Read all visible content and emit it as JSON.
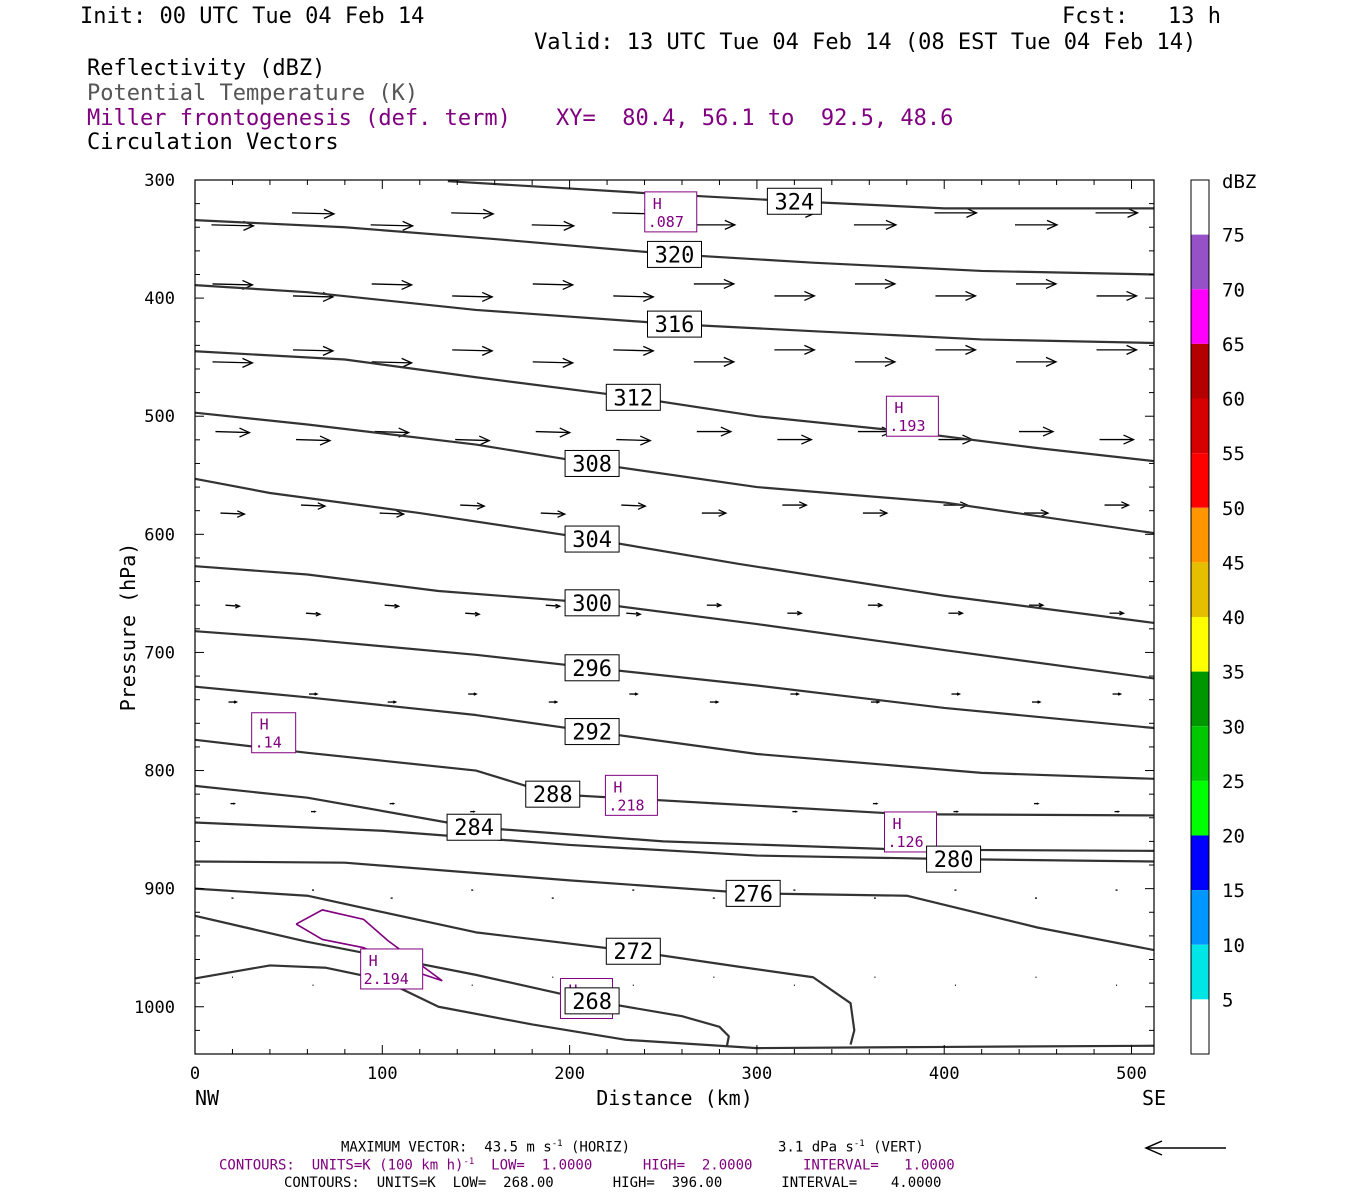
{
  "header": {
    "init": "Init: 00 UTC Tue 04 Feb 14",
    "fcst": "Fcst:   13 h",
    "valid": "Valid: 13 UTC Tue 04 Feb 14 (08 EST Tue 04 Feb 14)",
    "fields": [
      "Reflectivity (dBZ)",
      "Potential Temperature (K)",
      "Miller frontogenesis (def. term)",
      "Circulation Vectors"
    ],
    "xy": "XY=  80.4, 56.1 to  92.5, 48.6"
  },
  "colors": {
    "theta": "#333333",
    "frontogenesis": "#800080",
    "vectors": "#000000"
  },
  "colorbar": {
    "title": "dBZ",
    "labels": [
      "5",
      "10",
      "15",
      "20",
      "25",
      "30",
      "35",
      "40",
      "45",
      "50",
      "55",
      "60",
      "65",
      "70",
      "75"
    ],
    "colors": [
      "#ffffff",
      "#00e6e6",
      "#0096ff",
      "#0000ff",
      "#00ff00",
      "#00c800",
      "#009600",
      "#ffff00",
      "#e6be00",
      "#ff9600",
      "#ff0000",
      "#d70000",
      "#b40000",
      "#ff00ff",
      "#9650c8",
      "#ffffff"
    ]
  },
  "footer": {
    "max_vector": "MAXIMUM VECTOR:  43.5 m s",
    "max_vector_sup": "-1",
    "max_vector_horiz": " (HORIZ)",
    "max_vector_vert": "3.1 dPa s",
    "max_vector_vert_sup": "-1",
    "max_vector_vert_tail": " (VERT)",
    "contours1_a": "CONTOURS:  UNITS=K (100 km h)",
    "contours1_sup": "-1",
    "contours1_b": "  LOW=  1.0000      HIGH=  2.0000      INTERVAL=   1.0000",
    "contours2": "CONTOURS:  UNITS=K  LOW=  268.00       HIGH=  396.00       INTERVAL=    4.0000"
  },
  "chart_data": {
    "type": "line",
    "title": "",
    "xlabel": "Distance (km)",
    "ylabel": "Pressure (hPa)",
    "xlim": [
      0,
      512
    ],
    "ylim": [
      300,
      1040
    ],
    "y_log_scale": false,
    "x_ticks": [
      "0",
      "100",
      "200",
      "300",
      "400",
      "500"
    ],
    "y_ticks": [
      "300",
      "400",
      "500",
      "600",
      "700",
      "800",
      "900",
      "1000"
    ],
    "x_end_labels": {
      "left": "NW",
      "right": "SE"
    },
    "grid": false,
    "isentropes_K": [
      {
        "name": "324",
        "label_x": 320,
        "x": [
          135,
          250,
          320,
          400,
          512
        ],
        "y": [
          301,
          312,
          318,
          324,
          324
        ]
      },
      {
        "name": "320",
        "label_x": 256,
        "x": [
          0,
          80,
          160,
          256,
          330,
          420,
          512
        ],
        "y": [
          334,
          340,
          350,
          363,
          370,
          377,
          380
        ]
      },
      {
        "name": "316",
        "label_x": 256,
        "x": [
          0,
          60,
          150,
          256,
          330,
          420,
          512
        ],
        "y": [
          389,
          395,
          410,
          422,
          428,
          435,
          438
        ]
      },
      {
        "name": "312",
        "label_x": 234,
        "x": [
          0,
          80,
          150,
          234,
          300,
          380,
          450,
          512
        ],
        "y": [
          445,
          452,
          467,
          484,
          500,
          513,
          527,
          538
        ]
      },
      {
        "name": "308",
        "label_x": 212,
        "x": [
          0,
          60,
          150,
          212,
          300,
          400,
          512
        ],
        "y": [
          497,
          507,
          524,
          540,
          560,
          573,
          599
        ]
      },
      {
        "name": "304",
        "label_x": 212,
        "x": [
          0,
          40,
          120,
          212,
          290,
          400,
          512
        ],
        "y": [
          553,
          565,
          582,
          604,
          625,
          652,
          675
        ]
      },
      {
        "name": "300",
        "label_x": 212,
        "x": [
          0,
          60,
          130,
          212,
          300,
          400,
          512
        ],
        "y": [
          627,
          634,
          648,
          658,
          676,
          698,
          722
        ]
      },
      {
        "name": "296",
        "label_x": 212,
        "x": [
          0,
          60,
          150,
          212,
          300,
          400,
          512
        ],
        "y": [
          682,
          689,
          702,
          713,
          728,
          747,
          764
        ]
      },
      {
        "name": "292",
        "label_x": 212,
        "x": [
          0,
          60,
          150,
          212,
          300,
          420,
          512
        ],
        "y": [
          729,
          738,
          753,
          767,
          786,
          802,
          807
        ]
      },
      {
        "name": "288",
        "label_x": 191,
        "x": [
          0,
          60,
          150,
          191,
          280,
          380,
          512
        ],
        "y": [
          774,
          785,
          800,
          820,
          828,
          837,
          838
        ]
      },
      {
        "name": "284",
        "label_x": 149,
        "x": [
          0,
          60,
          149,
          250,
          380,
          512
        ],
        "y": [
          813,
          823,
          848,
          860,
          867,
          868
        ]
      },
      {
        "name": "280",
        "label_x": 405,
        "x": [
          0,
          100,
          200,
          300,
          405,
          512
        ],
        "y": [
          844,
          851,
          863,
          872,
          875,
          877
        ]
      },
      {
        "name": "276",
        "label_x": 298,
        "x": [
          0,
          80,
          200,
          298,
          380,
          450,
          512
        ],
        "y": [
          877,
          878,
          893,
          904,
          906,
          933,
          952
        ]
      },
      {
        "name": "272",
        "label_x": 234,
        "x": [
          0,
          60,
          150,
          234,
          290,
          330,
          350,
          352,
          350
        ],
        "y": [
          900,
          906,
          937,
          953,
          966,
          975,
          997,
          1020,
          1032
        ]
      },
      {
        "name": "268",
        "label_x": 212,
        "x": [
          0,
          60,
          150,
          212,
          260,
          280,
          285,
          284
        ],
        "y": [
          923,
          945,
          973,
          995,
          1008,
          1017,
          1025,
          1033
        ]
      },
      {
        "name": "",
        "label_x": null,
        "x": [
          0,
          40,
          70,
          100,
          130,
          180,
          230,
          300,
          400,
          512
        ],
        "y": [
          976,
          965,
          967,
          977,
          1000,
          1015,
          1028,
          1035,
          1034,
          1033
        ]
      }
    ],
    "frontogenesis_maxima": [
      {
        "label": "H",
        "value": ".087",
        "x": 254,
        "y": 327
      },
      {
        "label": "H",
        "value": ".193",
        "x": 383,
        "y": 500
      },
      {
        "label": "H",
        "value": ".14",
        "x": 42,
        "y": 768
      },
      {
        "label": "H",
        "value": ".218",
        "x": 233,
        "y": 821
      },
      {
        "label": "H",
        "value": ".126",
        "x": 382,
        "y": 852
      },
      {
        "label": "H",
        "value": "2.194",
        "x": 105,
        "y": 968
      },
      {
        "label": "H",
        "value": ".546",
        "x": 209,
        "y": 993
      }
    ],
    "frontogenesis_contour": {
      "x": [
        54,
        68,
        90,
        103,
        132,
        117,
        90,
        68,
        54
      ],
      "y": [
        930,
        918,
        926,
        944,
        978,
        970,
        950,
        943,
        930
      ]
    },
    "vector_scale": {
      "max_horiz_m_s": 43.5,
      "max_vert_dPa_s": 3.1
    },
    "vector_rows": [
      {
        "p": 338,
        "len": 42
      },
      {
        "p": 388,
        "len": 40
      },
      {
        "p": 454,
        "len": 40
      },
      {
        "p": 513,
        "len": 34
      },
      {
        "p": 582,
        "len": 24
      },
      {
        "p": 660,
        "len": 14
      },
      {
        "p": 742,
        "len": 8
      },
      {
        "p": 828,
        "len": 4
      },
      {
        "p": 908,
        "len": 2
      },
      {
        "p": 975,
        "len": 1
      }
    ]
  }
}
